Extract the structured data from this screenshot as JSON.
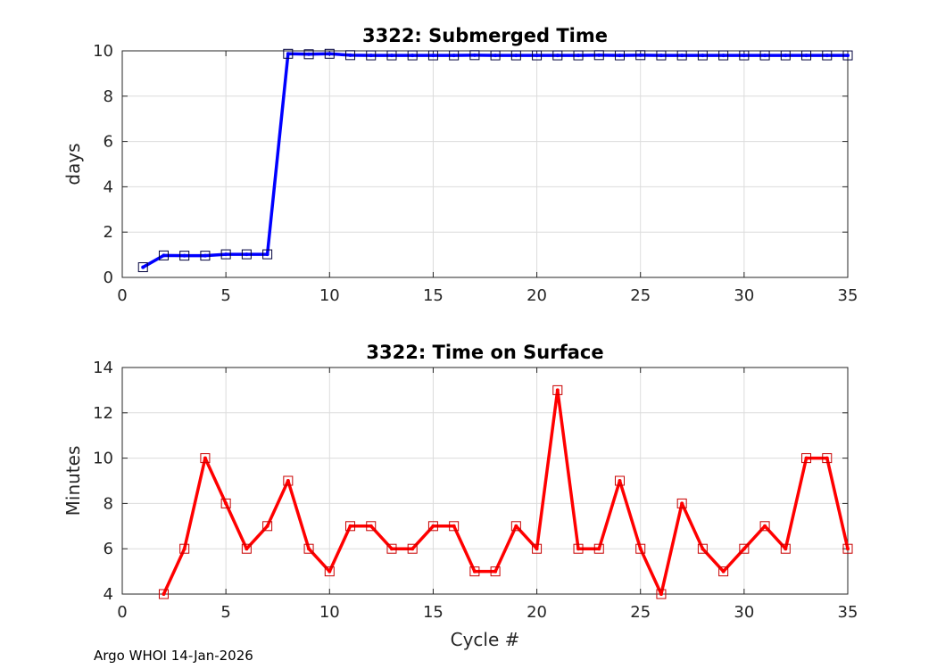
{
  "chart_data": [
    {
      "type": "line",
      "title": "3322: Submerged Time",
      "xlabel": "",
      "ylabel": "days",
      "xlim": [
        0,
        35
      ],
      "ylim": [
        0,
        10
      ],
      "xticks": [
        0,
        5,
        10,
        15,
        20,
        25,
        30,
        35
      ],
      "yticks": [
        0,
        2,
        4,
        6,
        8,
        10
      ],
      "grid": true,
      "color": "#0000ff",
      "marker_color": "#00003c",
      "x": [
        1,
        2,
        3,
        4,
        5,
        6,
        7,
        8,
        9,
        10,
        11,
        12,
        13,
        14,
        15,
        16,
        17,
        18,
        19,
        20,
        21,
        22,
        23,
        24,
        25,
        26,
        27,
        28,
        29,
        30,
        31,
        32,
        33,
        34,
        35
      ],
      "y": [
        0.45,
        0.97,
        0.96,
        0.96,
        1.02,
        1.02,
        1.02,
        9.87,
        9.85,
        9.87,
        9.81,
        9.8,
        9.8,
        9.8,
        9.8,
        9.8,
        9.81,
        9.8,
        9.8,
        9.8,
        9.8,
        9.8,
        9.81,
        9.8,
        9.81,
        9.8,
        9.8,
        9.8,
        9.8,
        9.8,
        9.8,
        9.8,
        9.8,
        9.8,
        9.8
      ]
    },
    {
      "type": "line",
      "title": "3322: Time on Surface",
      "xlabel": "Cycle #",
      "ylabel": "Minutes",
      "xlim": [
        0,
        35
      ],
      "ylim": [
        4,
        14
      ],
      "xticks": [
        0,
        5,
        10,
        15,
        20,
        25,
        30,
        35
      ],
      "yticks": [
        4,
        6,
        8,
        10,
        12,
        14
      ],
      "grid": true,
      "color": "#ff0000",
      "marker_color": "#c80000",
      "x": [
        2,
        3,
        4,
        5,
        6,
        7,
        8,
        9,
        10,
        11,
        12,
        13,
        14,
        15,
        16,
        17,
        18,
        19,
        20,
        21,
        22,
        23,
        24,
        25,
        26,
        27,
        28,
        29,
        30,
        31,
        32,
        33,
        34,
        35
      ],
      "y": [
        4,
        6,
        10,
        8,
        6,
        7,
        9,
        6,
        5,
        7,
        7,
        6,
        6,
        7,
        7,
        5,
        5,
        7,
        6,
        13,
        6,
        6,
        9,
        6,
        4,
        8,
        6,
        5,
        6,
        7,
        6,
        10,
        10,
        6
      ]
    }
  ],
  "footer": "Argo WHOI 14-Jan-2026"
}
